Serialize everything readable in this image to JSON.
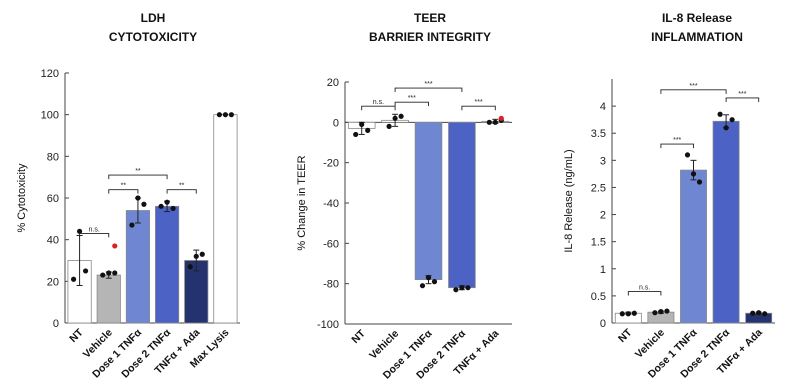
{
  "chart_data": [
    {
      "type": "bar",
      "title": "LDH",
      "subtitle": "CYTOTOXICITY",
      "ylabel": "% Cytotoxicity",
      "ylim": [
        0,
        120
      ],
      "yticks": [
        0,
        20,
        40,
        60,
        80,
        100,
        120
      ],
      "categories": [
        "NT",
        "Vehicle",
        "Dose 1 TNFα",
        "Dose 2 TNFα",
        "TNFα + Ada",
        "Max Lysis"
      ],
      "values": [
        30,
        23,
        54,
        56,
        30,
        100
      ],
      "errors": [
        12,
        1.5,
        6,
        2.5,
        5,
        0
      ],
      "bar_colors": [
        "#ffffff",
        "#b5b5b5",
        "#6f87d3",
        "#4c62c4",
        "#243270",
        "#ffffff"
      ],
      "points": [
        [
          21,
          44,
          25
        ],
        [
          23,
          24,
          24
        ],
        [
          47,
          60,
          57
        ],
        [
          56,
          58,
          55
        ],
        [
          27,
          32,
          33
        ],
        [
          100,
          100,
          100
        ]
      ],
      "outliers": [
        {
          "category": "Vehicle",
          "value": 37
        }
      ],
      "significance": [
        {
          "from": "NT",
          "to": "Vehicle",
          "label": "n.s.",
          "level": 43
        },
        {
          "from": "Vehicle",
          "to": "Dose 1 TNFα",
          "label": "**",
          "level": 64
        },
        {
          "from": "Vehicle",
          "to": "Dose 2 TNFα",
          "label": "**",
          "level": 71
        },
        {
          "from": "Dose 2 TNFα",
          "to": "TNFα + Ada",
          "label": "**",
          "level": 64
        }
      ]
    },
    {
      "type": "bar",
      "title": "TEER",
      "subtitle": "BARRIER INTEGRITY",
      "ylabel": "% Change in TEER",
      "ylim": [
        -100,
        20
      ],
      "yticks": [
        -100,
        -80,
        -60,
        -40,
        -20,
        0,
        20
      ],
      "categories": [
        "NT",
        "Vehicle",
        "Dose 1 TNFα",
        "Dose 2 TNFα",
        "TNFα + Ada"
      ],
      "values": [
        -3,
        1,
        -78,
        -82,
        0.5
      ],
      "errors": [
        3,
        3,
        2,
        1,
        1
      ],
      "bar_colors": [
        "#ffffff",
        "#ffffff",
        "#6f87d3",
        "#4c62c4",
        "#ffffff"
      ],
      "points": [
        [
          -6,
          -1,
          -4
        ],
        [
          -2,
          2,
          3
        ],
        [
          -81,
          -77,
          -79
        ],
        [
          -83,
          -82,
          -82
        ],
        [
          0,
          0,
          1
        ]
      ],
      "outliers": [
        {
          "category": "TNFα + Ada",
          "value": 2
        }
      ],
      "significance": [
        {
          "from": "NT",
          "to": "Vehicle",
          "label": "n.s.",
          "level": 8
        },
        {
          "from": "Vehicle",
          "to": "Dose 1 TNFα",
          "label": "***",
          "level": 10
        },
        {
          "from": "Vehicle",
          "to": "Dose 2 TNFα",
          "label": "***",
          "level": 17
        },
        {
          "from": "Dose 2 TNFα",
          "to": "TNFα + Ada",
          "label": "***",
          "level": 8
        }
      ]
    },
    {
      "type": "bar",
      "title": "IL-8 Release",
      "subtitle": "INFLAMMATION",
      "ylabel": "IL-8 Release (ng/mL)",
      "ylim": [
        0,
        4.5
      ],
      "yticks": [
        0,
        0.5,
        1,
        1.5,
        2,
        2.5,
        3,
        3.5,
        4
      ],
      "categories": [
        "NT",
        "Vehicle",
        "Dose 1 TNFα",
        "Dose 2 TNFα",
        "TNFα + Ada"
      ],
      "values": [
        0.18,
        0.2,
        2.82,
        3.72,
        0.18
      ],
      "errors": [
        0.02,
        0.02,
        0.18,
        0.12,
        0.02
      ],
      "bar_colors": [
        "#ffffff",
        "#b5b5b5",
        "#6f87d3",
        "#4c62c4",
        "#243270"
      ],
      "points": [
        [
          0.17,
          0.17,
          0.18
        ],
        [
          0.19,
          0.21,
          0.22
        ],
        [
          3.1,
          2.75,
          2.6
        ],
        [
          3.85,
          3.6,
          3.75
        ],
        [
          0.18,
          0.19,
          0.17
        ]
      ],
      "outliers": [],
      "significance": [
        {
          "from": "NT",
          "to": "Vehicle",
          "label": "n.s.",
          "level": 0.58
        },
        {
          "from": "Vehicle",
          "to": "Dose 1 TNFα",
          "label": "***",
          "level": 3.3
        },
        {
          "from": "Vehicle",
          "to": "Dose 2 TNFα",
          "label": "***",
          "level": 4.3
        },
        {
          "from": "Dose 2 TNFα",
          "to": "TNFα + Ada",
          "label": "***",
          "level": 4.15
        }
      ]
    }
  ]
}
